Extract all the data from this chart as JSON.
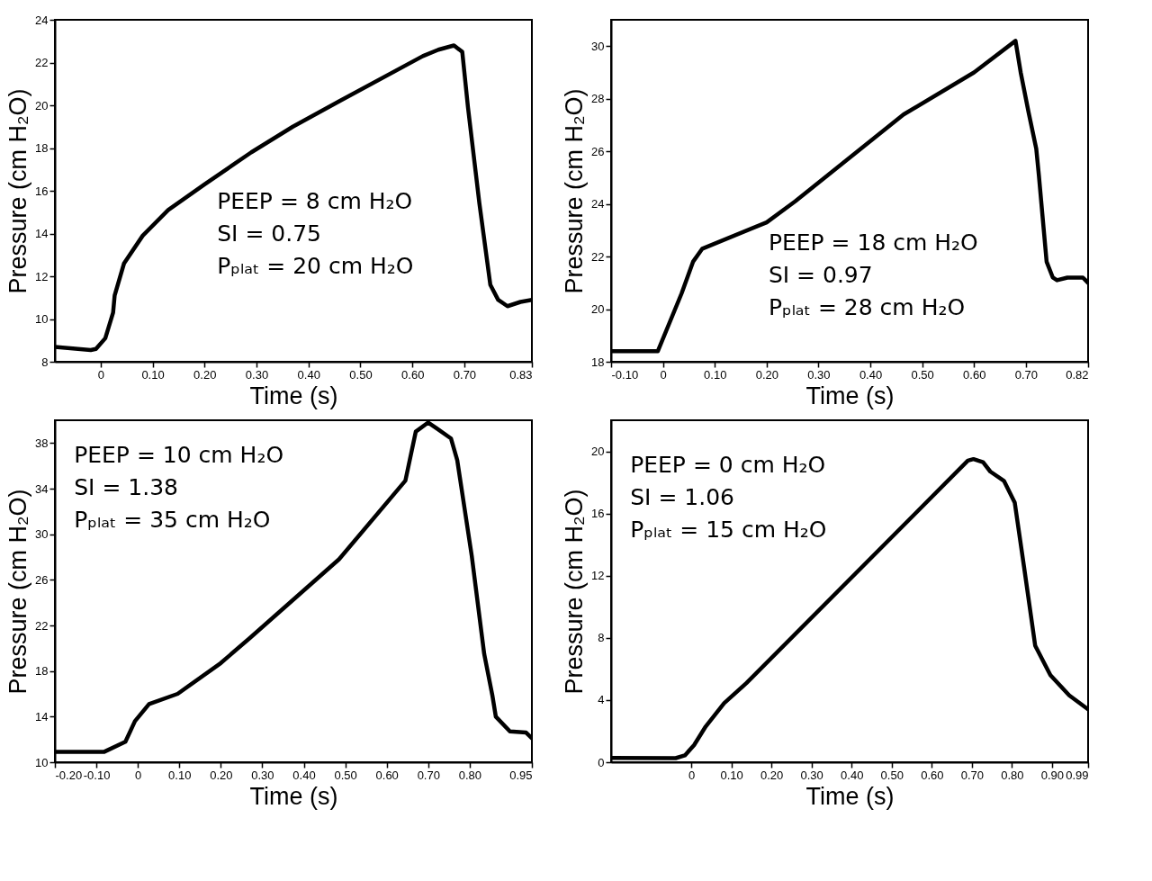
{
  "chart_data": [
    {
      "type": "line",
      "xlabel": "Time (s)",
      "ylabel": "Pressure (cm H₂O)",
      "xlim": [
        -0.088,
        0.83
      ],
      "ylim": [
        8,
        24
      ],
      "xticks": [
        0,
        {
          "value": 0.1,
          "label": "0.10"
        },
        {
          "value": 0.2,
          "label": "0.20"
        },
        {
          "value": 0.3,
          "label": "0.30"
        },
        {
          "value": 0.4,
          "label": "0.40"
        },
        {
          "value": 0.5,
          "label": "0.50"
        },
        {
          "value": 0.6,
          "label": "0.60"
        },
        {
          "value": 0.7,
          "label": "0.70"
        },
        0.83
      ],
      "yticks": [
        8,
        10,
        12,
        14,
        16,
        18,
        20,
        22,
        24
      ],
      "annotations": [
        "PEEP = 8 cm H₂O",
        "SI = 0.75",
        "Pₚₗₐₜ = 20 cm H₂O"
      ],
      "series": [
        {
          "color": "#000000",
          "x": [
            -0.088,
            -0.019,
            -0.009,
            0.009,
            0.024,
            0.027,
            0.045,
            0.081,
            0.13,
            0.2,
            0.29,
            0.37,
            0.46,
            0.62,
            0.65,
            0.68,
            0.696,
            0.707,
            0.729,
            0.75,
            0.765,
            0.783,
            0.808,
            0.83
          ],
          "values": [
            8.7,
            8.55,
            8.6,
            9.1,
            10.3,
            11.1,
            12.6,
            13.9,
            15.1,
            16.3,
            17.8,
            19.0,
            20.2,
            22.3,
            22.6,
            22.8,
            22.5,
            19.9,
            15.4,
            11.6,
            10.9,
            10.6,
            10.8,
            10.9
          ]
        }
      ]
    },
    {
      "type": "line",
      "xlabel": "Time (s)",
      "ylabel": "Pressure (cm H₂O)",
      "xlim": [
        -0.1,
        0.82
      ],
      "ylim": [
        18,
        31
      ],
      "xticks": [
        {
          "value": -0.1,
          "label": "-0.10"
        },
        0,
        {
          "value": 0.1,
          "label": "0.10"
        },
        {
          "value": 0.2,
          "label": "0.20"
        },
        {
          "value": 0.3,
          "label": "0.30"
        },
        {
          "value": 0.4,
          "label": "0.40"
        },
        {
          "value": 0.5,
          "label": "0.50"
        },
        {
          "value": 0.6,
          "label": "0.60"
        },
        {
          "value": 0.7,
          "label": "0.70"
        },
        0.82
      ],
      "yticks": [
        18,
        20,
        22,
        24,
        26,
        28,
        30
      ],
      "annotations": [
        "PEEP = 18 cm H₂O",
        "SI = 0.97",
        "Pₚₗₐₜ = 28 cm H₂O"
      ],
      "series": [
        {
          "color": "#000000",
          "x": [
            -0.1,
            -0.01,
            0.036,
            0.058,
            0.076,
            0.2,
            0.255,
            0.464,
            0.6,
            0.68,
            0.69,
            0.705,
            0.72,
            0.725,
            0.74,
            0.752,
            0.76,
            0.78,
            0.81,
            0.82
          ],
          "values": [
            18.4,
            18.4,
            20.6,
            21.8,
            22.3,
            23.3,
            24.1,
            27.4,
            29.0,
            30.2,
            29.0,
            27.5,
            26.1,
            25.1,
            21.8,
            21.2,
            21.1,
            21.2,
            21.2,
            21.0
          ]
        }
      ]
    },
    {
      "type": "line",
      "xlabel": "Time (s)",
      "ylabel": "Pressure (cm H₂O)",
      "xlim": [
        -0.2,
        0.95
      ],
      "ylim": [
        10,
        40
      ],
      "xticks": [
        {
          "value": -0.2,
          "label": "-0.20"
        },
        {
          "value": -0.1,
          "label": "-0.10"
        },
        0,
        {
          "value": 0.1,
          "label": "0.10"
        },
        {
          "value": 0.2,
          "label": "0.20"
        },
        {
          "value": 0.3,
          "label": "0.30"
        },
        {
          "value": 0.4,
          "label": "0.40"
        },
        {
          "value": 0.5,
          "label": "0.50"
        },
        {
          "value": 0.6,
          "label": "0.60"
        },
        {
          "value": 0.7,
          "label": "0.70"
        },
        {
          "value": 0.8,
          "label": "0.80"
        },
        0.95
      ],
      "yticks": [
        10,
        14,
        18,
        22,
        26,
        30,
        34,
        38
      ],
      "annotations": [
        "PEEP = 10 cm H₂O",
        "SI = 1.38",
        "Pₚₗₐₜ = 35 cm H₂O"
      ],
      "series": [
        {
          "color": "#000000",
          "x": [
            -0.2,
            -0.082,
            -0.03,
            -0.007,
            0.027,
            0.096,
            0.2,
            0.27,
            0.485,
            0.645,
            0.67,
            0.7,
            0.72,
            0.755,
            0.77,
            0.805,
            0.835,
            0.855,
            0.863,
            0.897,
            0.936,
            0.95
          ],
          "values": [
            10.9,
            10.9,
            11.8,
            13.6,
            15.1,
            16.0,
            18.7,
            20.9,
            27.8,
            34.7,
            39.0,
            39.8,
            39.3,
            38.4,
            36.5,
            28.1,
            19.5,
            15.8,
            14.0,
            12.7,
            12.6,
            12.1
          ]
        }
      ]
    },
    {
      "type": "line",
      "xlabel": "Time (s)",
      "ylabel": "Pressure (cm H₂O)",
      "xlim": [
        -0.2,
        0.99
      ],
      "ylim": [
        0,
        22
      ],
      "xticks": [
        0,
        {
          "value": 0.1,
          "label": "0.10"
        },
        {
          "value": 0.2,
          "label": "0.20"
        },
        {
          "value": 0.3,
          "label": "0.30"
        },
        {
          "value": 0.4,
          "label": "0.40"
        },
        {
          "value": 0.5,
          "label": "0.50"
        },
        {
          "value": 0.6,
          "label": "0.60"
        },
        {
          "value": 0.7,
          "label": "0.70"
        },
        {
          "value": 0.8,
          "label": "0.80"
        },
        {
          "value": 0.9,
          "label": "0.90"
        },
        0.99
      ],
      "yticks": [
        0,
        4,
        8,
        12,
        16,
        20
      ],
      "annotations": [
        "PEEP = 0 cm H₂O",
        "SI = 1.06",
        "Pₚₗₐₜ = 15 cm H₂O"
      ],
      "series": [
        {
          "color": "#000000",
          "x": [
            -0.198,
            -0.039,
            -0.016,
            0.007,
            0.036,
            0.082,
            0.138,
            0.69,
            0.704,
            0.728,
            0.746,
            0.78,
            0.807,
            0.83,
            0.858,
            0.896,
            0.943,
            0.99
          ],
          "values": [
            0.28,
            0.26,
            0.44,
            1.1,
            2.3,
            3.8,
            5.1,
            19.4,
            19.5,
            19.3,
            18.7,
            18.1,
            16.7,
            12.6,
            7.5,
            5.6,
            4.3,
            3.4
          ]
        }
      ]
    }
  ]
}
